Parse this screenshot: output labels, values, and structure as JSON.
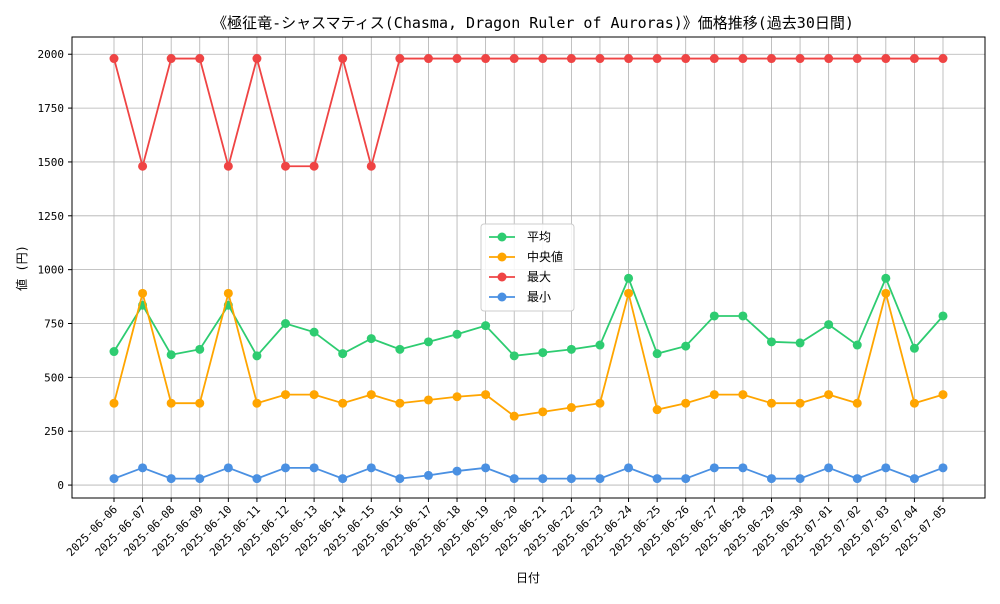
{
  "chart_data": {
    "type": "line",
    "title": "《極征竜-シャスマティス(Chasma, Dragon Ruler of Auroras)》価格推移(過去30日間)",
    "xlabel": "日付",
    "ylabel": "値 (円)",
    "ylim": [
      -60,
      2080
    ],
    "yticks": [
      0,
      250,
      500,
      750,
      1000,
      1250,
      1500,
      1750,
      2000
    ],
    "grid": true,
    "legend_position": "center",
    "categories": [
      "2025-06-06",
      "2025-06-07",
      "2025-06-08",
      "2025-06-09",
      "2025-06-10",
      "2025-06-11",
      "2025-06-12",
      "2025-06-13",
      "2025-06-14",
      "2025-06-15",
      "2025-06-16",
      "2025-06-17",
      "2025-06-18",
      "2025-06-19",
      "2025-06-20",
      "2025-06-21",
      "2025-06-22",
      "2025-06-23",
      "2025-06-24",
      "2025-06-25",
      "2025-06-26",
      "2025-06-27",
      "2025-06-28",
      "2025-06-29",
      "2025-06-30",
      "2025-07-01",
      "2025-07-02",
      "2025-07-03",
      "2025-07-04",
      "2025-07-05"
    ],
    "series": [
      {
        "name": "平均",
        "color": "#2ecc71",
        "values": [
          620,
          835,
          605,
          630,
          835,
          600,
          750,
          710,
          610,
          680,
          630,
          665,
          700,
          740,
          600,
          615,
          630,
          650,
          960,
          610,
          645,
          785,
          785,
          665,
          660,
          745,
          650,
          960,
          635,
          785
        ]
      },
      {
        "name": "中央値",
        "color": "#ffa500",
        "values": [
          380,
          890,
          380,
          380,
          890,
          380,
          420,
          420,
          380,
          420,
          380,
          395,
          410,
          420,
          320,
          340,
          360,
          380,
          890,
          350,
          380,
          420,
          420,
          380,
          380,
          420,
          380,
          890,
          380,
          420
        ]
      },
      {
        "name": "最大",
        "color": "#ef4444",
        "values": [
          1980,
          1480,
          1980,
          1980,
          1480,
          1980,
          1480,
          1480,
          1980,
          1480,
          1980,
          1980,
          1980,
          1980,
          1980,
          1980,
          1980,
          1980,
          1980,
          1980,
          1980,
          1980,
          1980,
          1980,
          1980,
          1980,
          1980,
          1980,
          1980,
          1980
        ]
      },
      {
        "name": "最小",
        "color": "#4a90e2",
        "values": [
          30,
          80,
          30,
          30,
          80,
          30,
          80,
          80,
          30,
          80,
          30,
          45,
          65,
          80,
          30,
          30,
          30,
          30,
          80,
          30,
          30,
          80,
          80,
          30,
          30,
          80,
          30,
          80,
          30,
          80
        ]
      }
    ]
  }
}
